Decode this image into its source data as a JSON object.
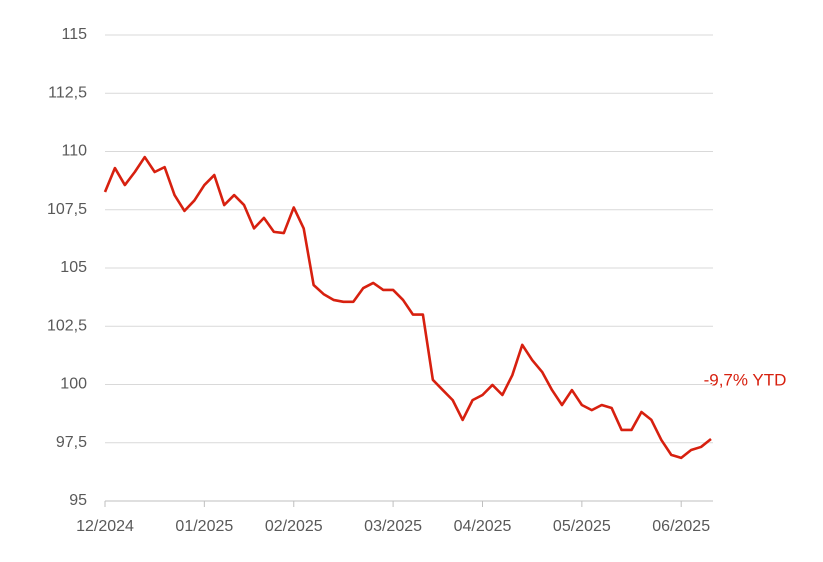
{
  "chart_data": {
    "type": "line",
    "annotation": "-9,7% YTD",
    "categories": [
      "12/2024",
      null,
      null,
      null,
      null,
      null,
      null,
      null,
      null,
      null,
      "01/2025",
      null,
      null,
      null,
      null,
      null,
      null,
      null,
      null,
      "02/2025",
      null,
      null,
      null,
      null,
      null,
      null,
      null,
      null,
      null,
      "03/2025",
      null,
      null,
      null,
      null,
      null,
      null,
      null,
      null,
      "04/2025",
      null,
      null,
      null,
      null,
      null,
      null,
      null,
      null,
      null,
      "05/2025",
      null,
      null,
      null,
      null,
      null,
      null,
      null,
      null,
      null,
      "06/2025",
      null,
      null,
      null
    ],
    "series": [
      {
        "color": "#d7200f",
        "values": [
          108.26,
          109.29,
          108.56,
          109.12,
          109.76,
          109.12,
          109.33,
          108.13,
          107.45,
          107.9,
          108.56,
          108.99,
          107.7,
          108.13,
          107.7,
          106.7,
          107.15,
          106.55,
          106.5,
          107.6,
          106.7,
          104.27,
          103.88,
          103.63,
          103.55,
          103.55,
          104.14,
          104.36,
          104.06,
          104.06,
          103.63,
          103.0,
          103.0,
          100.2,
          99.76,
          99.33,
          98.48,
          99.33,
          99.55,
          99.98,
          99.55,
          100.4,
          101.7,
          101.05,
          100.54,
          99.76,
          99.12,
          99.76,
          99.12,
          98.9,
          99.12,
          98.99,
          98.05,
          98.05,
          98.82,
          98.48,
          97.62,
          96.98,
          96.85,
          97.19,
          97.32,
          97.66
        ]
      }
    ],
    "ylim": [
      95,
      115
    ],
    "yticks": [
      95,
      {
        "value": 97.5,
        "label": "97,5"
      },
      100,
      {
        "value": 102.5,
        "label": "102,5"
      },
      105,
      {
        "value": 107.5,
        "label": "107,5"
      },
      110,
      {
        "value": 112.5,
        "label": "112,5"
      },
      115
    ],
    "grid": true
  }
}
